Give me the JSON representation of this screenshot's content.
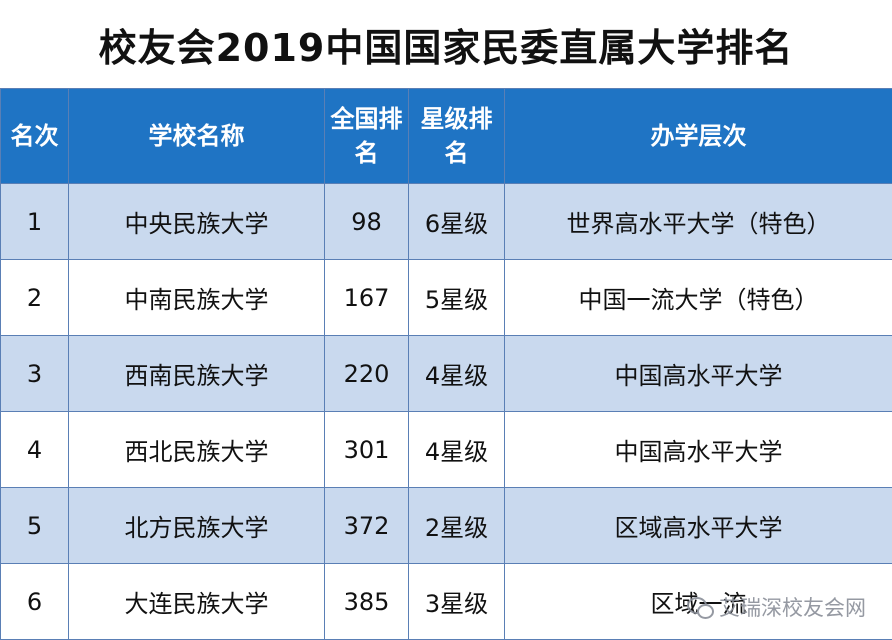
{
  "title": "校友会2019中国国家民委直属大学排名",
  "headers": [
    "名次",
    "学校名称",
    "全国排名",
    "星级排名",
    "办学层次"
  ],
  "rows": [
    {
      "rank": "1",
      "name": "中央民族大学",
      "national": "98",
      "star": "6星级",
      "level": "世界高水平大学（特色）"
    },
    {
      "rank": "2",
      "name": "中南民族大学",
      "national": "167",
      "star": "5星级",
      "level": "中国一流大学（特色）"
    },
    {
      "rank": "3",
      "name": "西南民族大学",
      "national": "220",
      "star": "4星级",
      "level": "中国高水平大学"
    },
    {
      "rank": "4",
      "name": "西北民族大学",
      "national": "301",
      "star": "4星级",
      "level": "中国高水平大学"
    },
    {
      "rank": "5",
      "name": "北方民族大学",
      "national": "372",
      "star": "2星级",
      "level": "区域高水平大学"
    },
    {
      "rank": "6",
      "name": "大连民族大学",
      "national": "385",
      "star": "3星级",
      "level": "区域一流"
    }
  ],
  "watermark": "艾瑞深校友会网",
  "colors": {
    "header_bg": "#1f74c4",
    "row_alt_bg": "#c9d9ee",
    "border": "#5a7fb5"
  }
}
